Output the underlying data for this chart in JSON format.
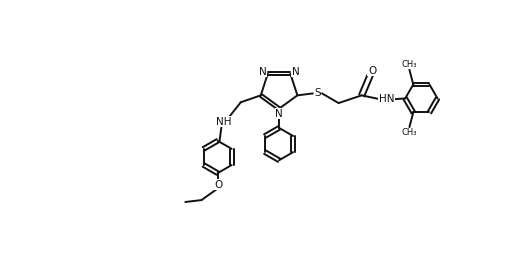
{
  "bg_color": "#ffffff",
  "line_color": "#111111",
  "line_width": 1.4,
  "font_size": 7.5,
  "figsize": [
    5.13,
    2.67
  ],
  "dpi": 100,
  "xlim": [
    0,
    10.26
  ],
  "ylim": [
    0,
    5.34
  ]
}
